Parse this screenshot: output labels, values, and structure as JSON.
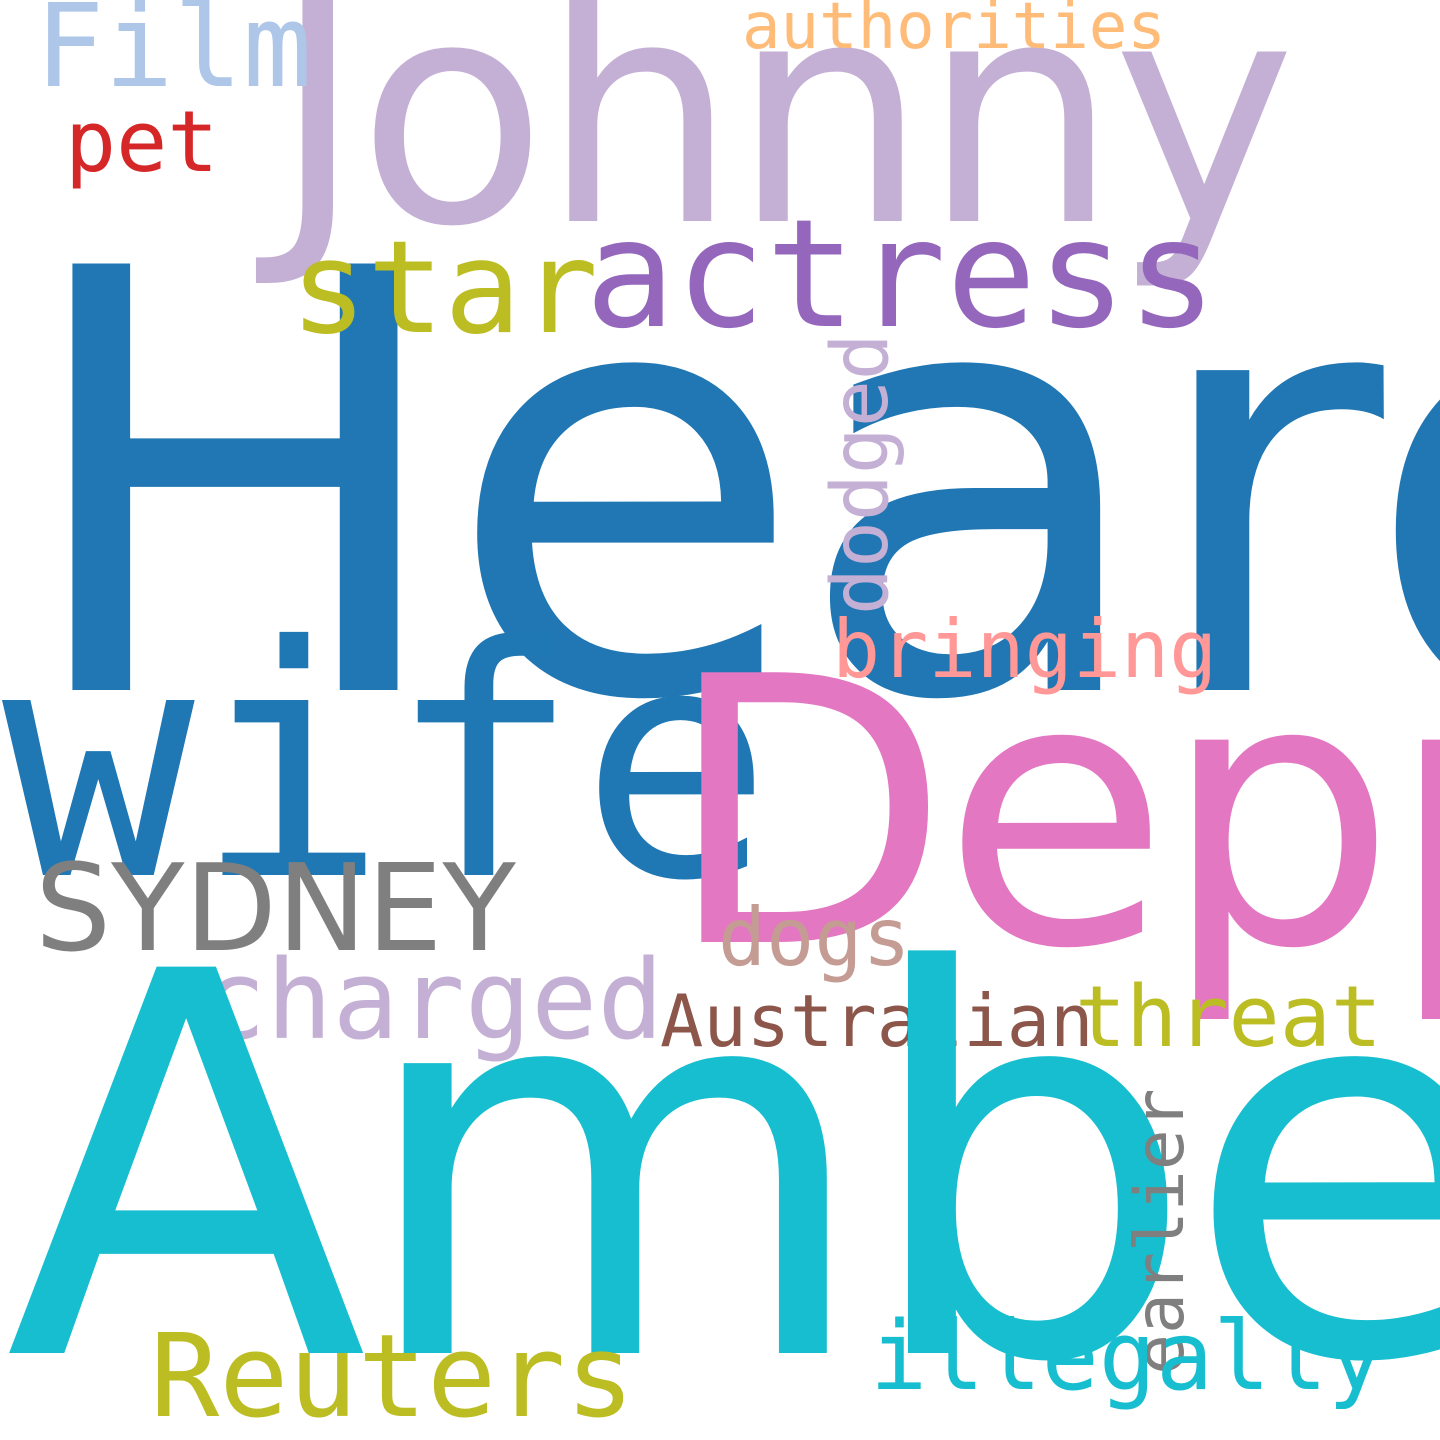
{
  "words": {
    "heard": {
      "text": "Heard",
      "color": "#2077b4"
    },
    "amber": {
      "text": "Amber",
      "color": "#17becf"
    },
    "johnny": {
      "text": "Johnny",
      "color": "#c5b0d5"
    },
    "depp": {
      "text": "Depp",
      "color": "#e377c2"
    },
    "wife": {
      "text": "wife",
      "color": "#1f77b4"
    },
    "actress": {
      "text": "actress",
      "color": "#9467bd"
    },
    "star": {
      "text": "star",
      "color": "#bcbd22"
    },
    "film": {
      "text": "Film",
      "color": "#aec7e8"
    },
    "authorities": {
      "text": "authorities",
      "color": "#ffbb78"
    },
    "pet": {
      "text": "pet",
      "color": "#d62728"
    },
    "dodged": {
      "text": "dodged",
      "color": "#c5b0d5"
    },
    "bringing": {
      "text": "bringing",
      "color": "#ff9896"
    },
    "sydney": {
      "text": "SYDNEY",
      "color": "#7f7f7f"
    },
    "dogs": {
      "text": "dogs",
      "color": "#c49c94"
    },
    "charged": {
      "text": "charged",
      "color": "#c5b0d5"
    },
    "australian": {
      "text": "Australian",
      "color": "#8c564b"
    },
    "threat": {
      "text": "threat",
      "color": "#bcbd22"
    },
    "earlier": {
      "text": "earlier",
      "color": "#7f7f7f"
    },
    "reuters": {
      "text": "Reuters",
      "color": "#bcbd22"
    },
    "illegally": {
      "text": "illegally",
      "color": "#17becf"
    }
  }
}
